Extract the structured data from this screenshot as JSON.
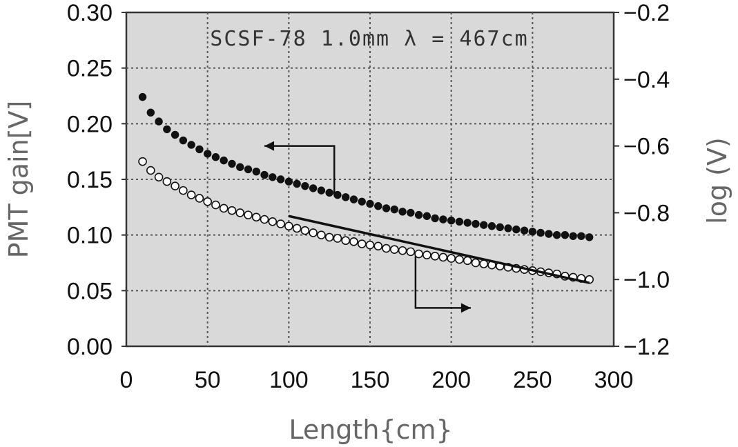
{
  "chart_data": {
    "type": "scatter",
    "annotation": "SCSF-78  1.0mm  λ = 467cm",
    "xlabel": "Length{cm}",
    "ylabel_left": "PMT gain[V]",
    "ylabel_right": "log (V)",
    "xlim": [
      0,
      300
    ],
    "ylim_left": [
      0.0,
      0.3
    ],
    "ylim_right": [
      -1.2,
      -0.2
    ],
    "x_ticks": [
      "0",
      "50",
      "100",
      "150",
      "200",
      "250",
      "300"
    ],
    "y_left_ticks": [
      "0.00",
      "0.05",
      "0.10",
      "0.15",
      "0.20",
      "0.25",
      "0.30"
    ],
    "y_right_ticks": [
      "−1.2",
      "−1.0",
      "−0.8",
      "−0.6",
      "−0.4",
      "−0.2"
    ],
    "grid": true,
    "colors": {
      "plot_background": "#d9d9d9",
      "grid": "#555555",
      "marker": "#111111"
    },
    "series": [
      {
        "axis": "left",
        "marker": "filled-circle",
        "x": [
          10,
          15,
          20,
          25,
          30,
          35,
          40,
          45,
          50,
          55,
          60,
          65,
          70,
          75,
          80,
          85,
          90,
          95,
          100,
          105,
          110,
          115,
          120,
          125,
          130,
          135,
          140,
          145,
          150,
          155,
          160,
          165,
          170,
          175,
          180,
          185,
          190,
          195,
          200,
          205,
          210,
          215,
          220,
          225,
          230,
          235,
          240,
          245,
          250,
          255,
          260,
          265,
          270,
          275,
          280,
          285
        ],
        "values": [
          0.224,
          0.21,
          0.202,
          0.195,
          0.19,
          0.185,
          0.181,
          0.177,
          0.173,
          0.17,
          0.167,
          0.164,
          0.161,
          0.159,
          0.157,
          0.154,
          0.152,
          0.15,
          0.148,
          0.146,
          0.144,
          0.142,
          0.14,
          0.138,
          0.136,
          0.134,
          0.132,
          0.13,
          0.128,
          0.126,
          0.124,
          0.123,
          0.121,
          0.12,
          0.118,
          0.117,
          0.115,
          0.114,
          0.113,
          0.112,
          0.111,
          0.11,
          0.109,
          0.108,
          0.107,
          0.106,
          0.105,
          0.104,
          0.103,
          0.102,
          0.101,
          0.1,
          0.1,
          0.099,
          0.099,
          0.098
        ]
      },
      {
        "axis": "left",
        "marker": "open-circle",
        "x": [
          10,
          15,
          20,
          25,
          30,
          35,
          40,
          45,
          50,
          55,
          60,
          65,
          70,
          75,
          80,
          85,
          90,
          95,
          100,
          105,
          110,
          115,
          120,
          125,
          130,
          135,
          140,
          145,
          150,
          155,
          160,
          165,
          170,
          175,
          180,
          185,
          190,
          195,
          200,
          205,
          210,
          215,
          220,
          225,
          230,
          235,
          240,
          245,
          250,
          255,
          260,
          265,
          270,
          275,
          280,
          285
        ],
        "values": [
          0.166,
          0.158,
          0.152,
          0.148,
          0.144,
          0.14,
          0.136,
          0.133,
          0.13,
          0.127,
          0.124,
          0.122,
          0.12,
          0.118,
          0.116,
          0.114,
          0.112,
          0.11,
          0.108,
          0.106,
          0.104,
          0.102,
          0.1,
          0.098,
          0.097,
          0.095,
          0.094,
          0.092,
          0.091,
          0.09,
          0.088,
          0.087,
          0.086,
          0.085,
          0.083,
          0.082,
          0.081,
          0.08,
          0.079,
          0.078,
          0.077,
          0.075,
          0.074,
          0.073,
          0.072,
          0.071,
          0.07,
          0.069,
          0.068,
          0.067,
          0.066,
          0.065,
          0.063,
          0.062,
          0.061,
          0.06
        ]
      },
      {
        "axis": "right",
        "marker": "line",
        "x": [
          100,
          285
        ],
        "values": [
          -0.81,
          -1.01
        ]
      }
    ],
    "arrows": [
      {
        "from_series": 0,
        "points": [
          [
            128,
            0.136
          ],
          [
            128,
            0.18
          ],
          [
            85,
            0.18
          ]
        ]
      },
      {
        "from_series": 2,
        "points": [
          [
            178,
            -0.93
          ],
          [
            178,
            -1.085
          ],
          [
            212,
            -1.085
          ]
        ]
      }
    ]
  }
}
